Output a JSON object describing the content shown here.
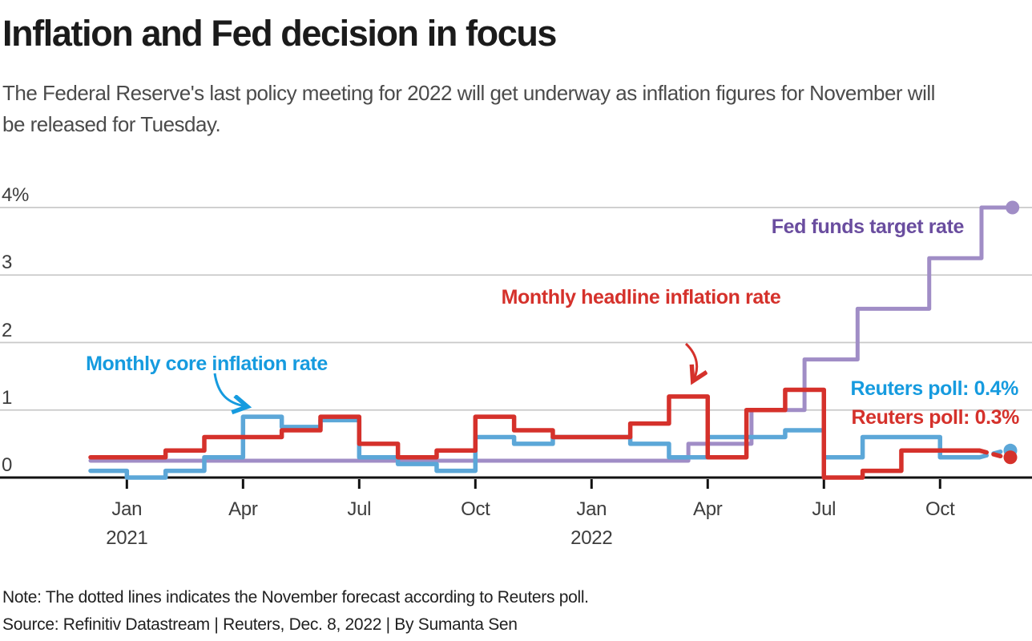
{
  "header": {
    "title": "Inflation and Fed decision in focus",
    "subtitle": "The Federal Reserve's last policy meeting for 2022 will get underway as inflation figures for November will be released for Tuesday."
  },
  "annotations": {
    "core_label": "Monthly core inflation rate",
    "headline_label": "Monthly headline inflation rate",
    "fed_label": "Fed funds target rate",
    "poll_core": "Reuters poll: 0.4%",
    "poll_headline": "Reuters poll: 0.3%"
  },
  "footer": {
    "note": "Note: The dotted lines indicates the November forecast according to Reuters poll.",
    "source": "Source: Refinitiv Datastream | Reuters, Dec. 8, 2022 | By Sumanta Sen"
  },
  "colors": {
    "headline": "#d5312b",
    "core_line": "#5ca7d8",
    "core_label": "#169bdf",
    "fed_line": "#a08dc6",
    "fed_label": "#6a4d9f",
    "grid": "#c9c9c9",
    "axis": "#111111",
    "axis_label": "#3d3d3d",
    "background": "#ffffff"
  },
  "chart_data": {
    "type": "line",
    "subtype": "step",
    "title": "Inflation and Fed decision in focus",
    "unit": "percent, month-over-month",
    "ylim": [
      0,
      4
    ],
    "grid": "horizontal",
    "y_ticks": [
      {
        "v": 4,
        "label": "4%"
      },
      {
        "v": 3,
        "label": "3"
      },
      {
        "v": 2,
        "label": "2"
      },
      {
        "v": 1,
        "label": "1"
      },
      {
        "v": 0,
        "label": "0"
      }
    ],
    "x_ticks": [
      {
        "m": 1,
        "label": "Jan",
        "year": "2021"
      },
      {
        "m": 4,
        "label": "Apr"
      },
      {
        "m": 7,
        "label": "Jul"
      },
      {
        "m": 10,
        "label": "Oct"
      },
      {
        "m": 13,
        "label": "Jan",
        "year": "2022"
      },
      {
        "m": 16,
        "label": "Apr"
      },
      {
        "m": 19,
        "label": "Jul"
      },
      {
        "m": 22,
        "label": "Oct"
      }
    ],
    "months": [
      "Dec 2020",
      "Jan 2021",
      "Feb 2021",
      "Mar 2021",
      "Apr 2021",
      "May 2021",
      "Jun 2021",
      "Jul 2021",
      "Aug 2021",
      "Sep 2021",
      "Oct 2021",
      "Nov 2021",
      "Dec 2021",
      "Jan 2022",
      "Feb 2022",
      "Mar 2022",
      "Apr 2022",
      "May 2022",
      "Jun 2022",
      "Jul 2022",
      "Aug 2022",
      "Sep 2022",
      "Oct 2022"
    ],
    "series": [
      {
        "name": "Monthly headline inflation rate",
        "values": [
          0.3,
          0.3,
          0.4,
          0.6,
          0.6,
          0.7,
          0.9,
          0.5,
          0.3,
          0.4,
          0.9,
          0.7,
          0.6,
          0.6,
          0.8,
          1.2,
          0.3,
          1.0,
          1.3,
          0.0,
          0.1,
          0.4,
          0.4
        ],
        "forecast": {
          "month": "Nov 2022",
          "value": 0.3,
          "style": "dotted"
        }
      },
      {
        "name": "Monthly core inflation rate",
        "values": [
          0.1,
          0.0,
          0.1,
          0.3,
          0.9,
          0.75,
          0.85,
          0.3,
          0.2,
          0.1,
          0.6,
          0.5,
          0.6,
          0.6,
          0.5,
          0.3,
          0.6,
          0.6,
          0.7,
          0.3,
          0.6,
          0.6,
          0.3
        ],
        "forecast": {
          "month": "Nov 2022",
          "value": 0.4,
          "style": "dotted"
        }
      },
      {
        "name": "Fed funds target rate",
        "type": "step-by-date",
        "points": [
          {
            "date": "Dec 2020",
            "m": 0.06,
            "rate": 0.25
          },
          {
            "date": "Mar 16, 2022",
            "m": 15.5,
            "rate": 0.5
          },
          {
            "date": "May 4, 2022",
            "m": 17.13,
            "rate": 1.0
          },
          {
            "date": "Jun 15, 2022",
            "m": 18.5,
            "rate": 1.75
          },
          {
            "date": "Jul 27, 2022",
            "m": 19.87,
            "rate": 2.5
          },
          {
            "date": "Sep 21, 2022",
            "m": 21.72,
            "rate": 3.25
          },
          {
            "date": "Nov 2, 2022",
            "m": 23.07,
            "rate": 4.0
          }
        ],
        "end_m": 23.85,
        "end_marker": "dot"
      }
    ],
    "legend_position": "inline-annotations"
  }
}
